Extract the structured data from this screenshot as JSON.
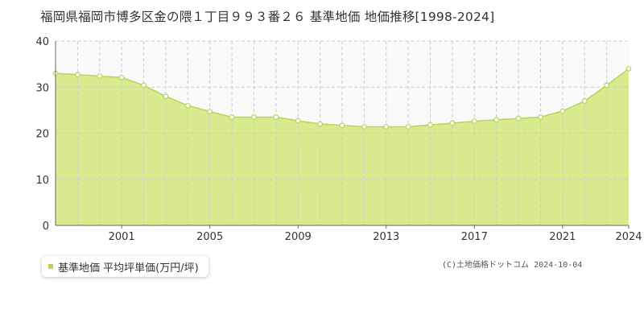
{
  "colors": {
    "area_fill": "#d9eb8e",
    "line": "#b5d65a",
    "marker_fill": "#ffffff",
    "grid": "#cccccc",
    "plot_bg": "#fafafa",
    "axis_text": "#333333"
  },
  "copyright": "(C)土地価格ドットコム 2024-10-04",
  "chart_data": {
    "type": "area",
    "title": "福岡県福岡市博多区金の隈１丁目９９３番２６ 基準地価 地価推移[1998-2024]",
    "xlabel": "",
    "ylabel": "",
    "xlim": [
      1998,
      2024
    ],
    "ylim": [
      0,
      40
    ],
    "yticks": [
      0,
      10,
      20,
      30,
      40
    ],
    "xtick_labels": [
      "2001",
      "2005",
      "2009",
      "2013",
      "2017",
      "2021",
      "2024"
    ],
    "grid": true,
    "legend_position": "bottom-left",
    "series": [
      {
        "name": "基準地価 平均坪単価(万円/坪)",
        "x": [
          1998,
          1999,
          2000,
          2001,
          2002,
          2003,
          2004,
          2005,
          2006,
          2007,
          2008,
          2009,
          2010,
          2011,
          2012,
          2013,
          2014,
          2015,
          2016,
          2017,
          2018,
          2019,
          2020,
          2021,
          2022,
          2023,
          2024
        ],
        "values": [
          33.0,
          32.7,
          32.4,
          32.1,
          30.4,
          28.0,
          26.0,
          24.7,
          23.5,
          23.5,
          23.5,
          22.7,
          22.0,
          21.7,
          21.4,
          21.4,
          21.4,
          21.8,
          22.2,
          22.6,
          22.9,
          23.2,
          23.5,
          24.8,
          27.0,
          30.4,
          34.0
        ]
      }
    ]
  }
}
